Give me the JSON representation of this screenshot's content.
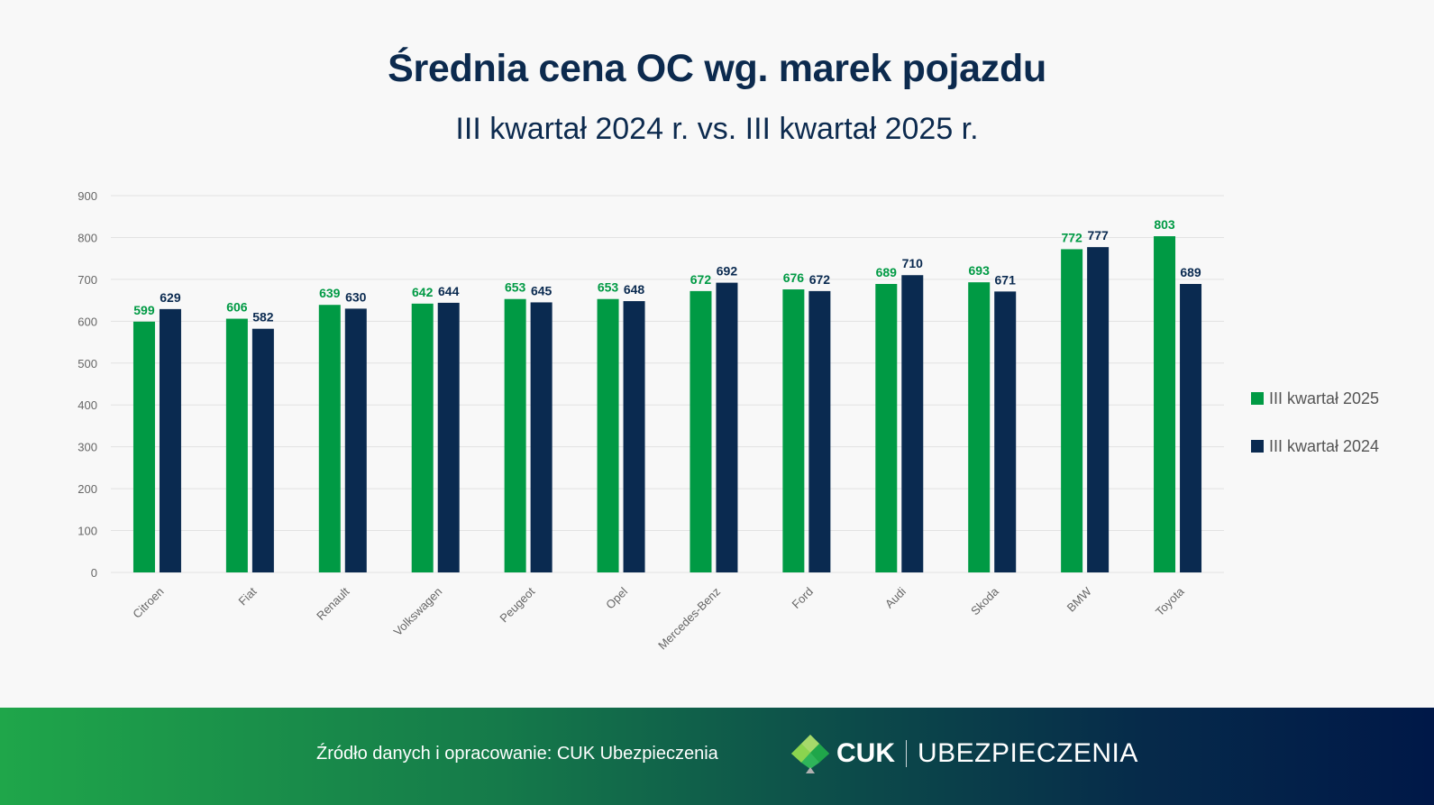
{
  "header": {
    "title": "Średnia cena OC wg. marek pojazdu",
    "subtitle": "III kwartał 2024 r. vs. III kwartał 2025 r."
  },
  "colors": {
    "series_2025": "#009a44",
    "series_2024": "#0a2a50",
    "title": "#0c2a4e",
    "grid": "#e2e2e2",
    "axis_text": "#666666"
  },
  "chart_data": {
    "type": "bar",
    "title": "Średnia cena OC wg. marek pojazdu",
    "subtitle": "III kwartał 2024 r. vs. III kwartał 2025 r.",
    "xlabel": "",
    "ylabel": "",
    "ylim": [
      0,
      900
    ],
    "yticks": [
      0,
      100,
      200,
      300,
      400,
      500,
      600,
      700,
      800,
      900
    ],
    "grid": true,
    "legend_position": "right",
    "categories": [
      "Citroen",
      "Fiat",
      "Renault",
      "Volkswagen",
      "Peugeot",
      "Opel",
      "Mercedes-Benz",
      "Ford",
      "Audi",
      "Skoda",
      "BMW",
      "Toyota"
    ],
    "series": [
      {
        "name": "III kwartał 2025",
        "color": "#009a44",
        "values": [
          599,
          606,
          639,
          642,
          653,
          653,
          672,
          676,
          689,
          693,
          772,
          803
        ]
      },
      {
        "name": "III kwartał 2024",
        "color": "#0a2a50",
        "values": [
          629,
          582,
          630,
          644,
          645,
          648,
          692,
          672,
          710,
          671,
          777,
          689
        ]
      }
    ]
  },
  "legend": [
    {
      "label": "III kwartał 2025",
      "color": "#009a44"
    },
    {
      "label": "III kwartał 2024",
      "color": "#0a2a50"
    }
  ],
  "footer": {
    "source": "Źródło danych i opracowanie: CUK Ubezpieczenia",
    "logo_cuk": "CUK",
    "logo_ub": "UBEZPIECZENIA"
  }
}
